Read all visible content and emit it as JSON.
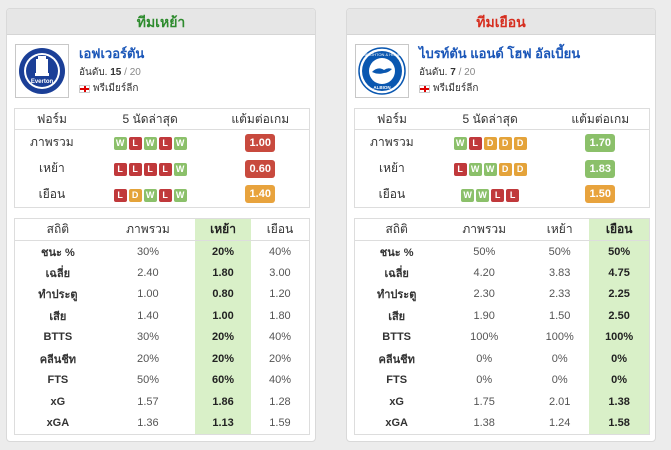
{
  "home": {
    "header": "ทีมเหย้า",
    "team_name": "เอฟเวอร์ตัน",
    "rank_label": "อันดับ.",
    "rank": "15",
    "rank_total": "/ 20",
    "league": "พรีเมียร์ลีก",
    "logo_text": "Everton",
    "form_headers": [
      "ฟอร์ม",
      "5 นัดล่าสุด",
      "แต้มต่อเกม"
    ],
    "form_rows": [
      {
        "label": "ภาพรวม",
        "results": [
          "W",
          "L",
          "W",
          "L",
          "W"
        ],
        "ppg": "1.00",
        "ppg_color": "red"
      },
      {
        "label": "เหย้า",
        "results": [
          "L",
          "L",
          "L",
          "L",
          "W"
        ],
        "ppg": "0.60",
        "ppg_color": "red"
      },
      {
        "label": "เยือน",
        "results": [
          "L",
          "D",
          "W",
          "L",
          "W"
        ],
        "ppg": "1.40",
        "ppg_color": "orange"
      }
    ],
    "stats_headers": [
      "สถิติ",
      "ภาพรวม",
      "เหย้า",
      "เยือน"
    ],
    "stats_rows": [
      {
        "label": "ชนะ %",
        "values": [
          "30%",
          "20%",
          "40%"
        ]
      },
      {
        "label": "เฉลี่ย",
        "values": [
          "2.40",
          "1.80",
          "3.00"
        ]
      },
      {
        "label": "ทำประตู",
        "values": [
          "1.00",
          "0.80",
          "1.20"
        ]
      },
      {
        "label": "เสีย",
        "values": [
          "1.40",
          "1.00",
          "1.80"
        ]
      },
      {
        "label": "BTTS",
        "values": [
          "30%",
          "20%",
          "40%"
        ]
      },
      {
        "label": "คลีนชีท",
        "values": [
          "20%",
          "20%",
          "20%"
        ]
      },
      {
        "label": "FTS",
        "values": [
          "50%",
          "60%",
          "40%"
        ]
      },
      {
        "label": "xG",
        "values": [
          "1.57",
          "1.86",
          "1.28"
        ]
      },
      {
        "label": "xGA",
        "values": [
          "1.36",
          "1.13",
          "1.59"
        ]
      }
    ]
  },
  "away": {
    "header": "ทีมเยือน",
    "team_name": "ไบรท์ตัน แอนด์ โฮฟ อัลเบี้ยน",
    "rank_label": "อันดับ.",
    "rank": "7",
    "rank_total": "/ 20",
    "league": "พรีเมียร์ลีก",
    "logo_text": "BRIGHTON & HOVE ALBION",
    "form_headers": [
      "ฟอร์ม",
      "5 นัดล่าสุด",
      "แต้มต่อเกม"
    ],
    "form_rows": [
      {
        "label": "ภาพรวม",
        "results": [
          "W",
          "L",
          "D",
          "D",
          "D"
        ],
        "ppg": "1.70",
        "ppg_color": "green"
      },
      {
        "label": "เหย้า",
        "results": [
          "L",
          "W",
          "W",
          "D",
          "D"
        ],
        "ppg": "1.83",
        "ppg_color": "green"
      },
      {
        "label": "เยือน",
        "results": [
          "W",
          "W",
          "L",
          "L"
        ],
        "ppg": "1.50",
        "ppg_color": "orange"
      }
    ],
    "stats_headers": [
      "สถิติ",
      "ภาพรวม",
      "เหย้า",
      "เยือน"
    ],
    "stats_rows": [
      {
        "label": "ชนะ %",
        "values": [
          "50%",
          "50%",
          "50%"
        ]
      },
      {
        "label": "เฉลี่ย",
        "values": [
          "4.20",
          "3.83",
          "4.75"
        ]
      },
      {
        "label": "ทำประตู",
        "values": [
          "2.30",
          "2.33",
          "2.25"
        ]
      },
      {
        "label": "เสีย",
        "values": [
          "1.90",
          "1.50",
          "2.50"
        ]
      },
      {
        "label": "BTTS",
        "values": [
          "100%",
          "100%",
          "100%"
        ]
      },
      {
        "label": "คลีนชีท",
        "values": [
          "0%",
          "0%",
          "0%"
        ]
      },
      {
        "label": "FTS",
        "values": [
          "0%",
          "0%",
          "0%"
        ]
      },
      {
        "label": "xG",
        "values": [
          "1.75",
          "2.01",
          "1.38"
        ]
      },
      {
        "label": "xGA",
        "values": [
          "1.38",
          "1.24",
          "1.58"
        ]
      }
    ]
  },
  "colors": {
    "home_header": "#2e8b2e",
    "away_header": "#d62e1f",
    "team_link": "#1a56b8",
    "win": "#8bc06a",
    "loss": "#c0393b",
    "draw": "#e4a33a",
    "highlight": "#d9f0c8"
  }
}
